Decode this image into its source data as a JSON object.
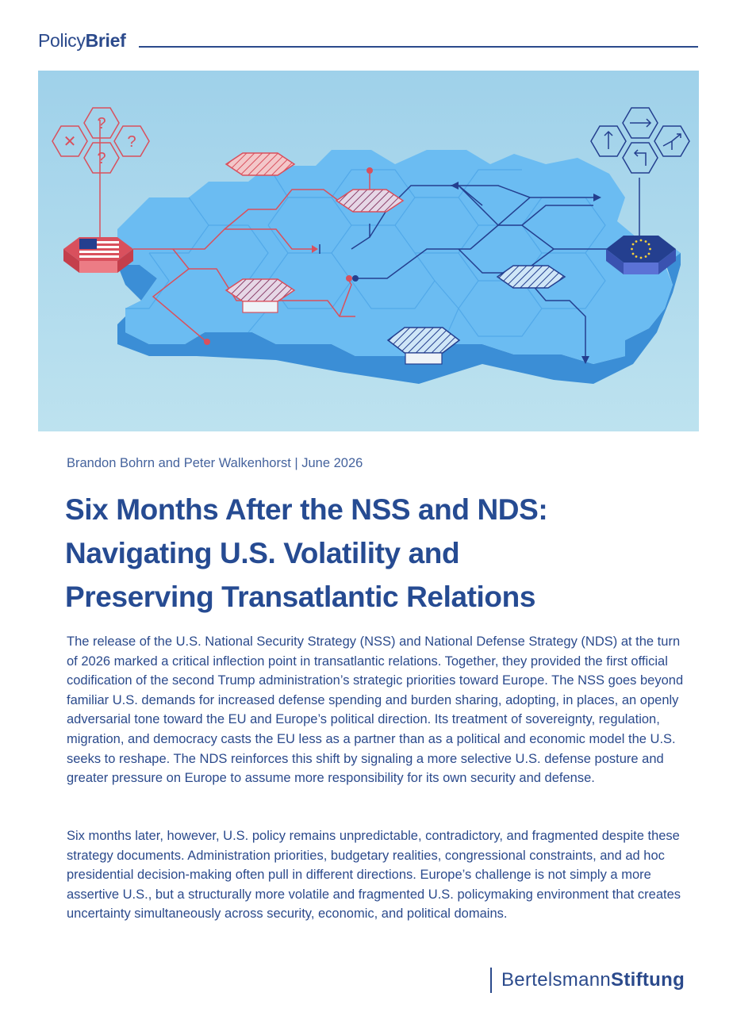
{
  "header": {
    "brand_light": "Policy",
    "brand_bold": "Brief"
  },
  "hero": {
    "colors": {
      "sky": "#a8d6ec",
      "tile": "#6bbcf2",
      "tile_edge": "#3b8ed6",
      "red": "#d9505d",
      "navy": "#243f8f"
    },
    "glyphs": {
      "question": "?",
      "cross": "✕"
    }
  },
  "byline": "Brandon Bohrn and Peter Walkenhorst | June 2026",
  "title": [
    "Six Months After the NSS and NDS:",
    "Navigating U.S. Volatility and",
    "Preserving Transatlantic Relations"
  ],
  "paragraphs": [
    "The release of the U.S. National Security Strategy (NSS) and National Defense Strategy (NDS) at the turn of 2026 marked a critical inflection point in transatlantic relations. Together, they provided the first official codification of the second Trump administration’s strategic priorities toward Europe. The NSS goes beyond familiar U.S. demands for increased defense spending and burden sharing, adopting, in places, an openly adversarial tone toward the EU and Europe’s political direction. Its treatment of sovereignty, regulation, migration, and democracy casts the EU less as a partner than as a political and economic model the U.S. seeks to reshape. The NDS reinforces this shift by signaling a more selective U.S. defense posture and greater pressure on Europe to assume more responsibility for its own security and defense.",
    "Six months later, however, U.S. policy remains unpredictable, contradictory, and fragmented despite these strategy documents. Administration priorities, budgetary realities, congressional constraints, and ad hoc presidential decision-making often pull in different directions. Europe’s challenge is not simply a more assertive U.S., but a structurally more volatile and fragmented U.S. policymaking environment that creates uncertainty simultaneously across security, economic, and political domains."
  ],
  "footer": {
    "logo_light": "Bertelsmann",
    "logo_bold": "Stiftung"
  }
}
